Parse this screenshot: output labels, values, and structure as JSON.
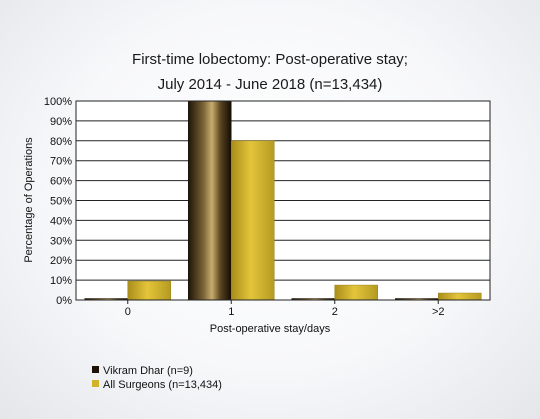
{
  "chart_data": {
    "type": "bar",
    "title": "First-time lobectomy: Post-operative stay;",
    "subtitle": "July 2014 - June 2018 (n=13,434)",
    "xlabel": "Post-operative stay/days",
    "ylabel": "Percentage of Operations",
    "categories": [
      "0",
      "1",
      "2",
      ">2"
    ],
    "ylim": [
      0,
      100
    ],
    "yticks": [
      "0%",
      "10%",
      "20%",
      "30%",
      "40%",
      "50%",
      "60%",
      "70%",
      "80%",
      "90%",
      "100%"
    ],
    "grid": true,
    "legend_position": "bottom-left",
    "series": [
      {
        "name": "Vikram Dhar (n=9)",
        "values": [
          0,
          100,
          0,
          0
        ],
        "color": "#3a2a14"
      },
      {
        "name": "All Surgeons (n=13,434)",
        "values": [
          9.5,
          80,
          7.5,
          3.5
        ],
        "color": "#d2b227"
      }
    ]
  }
}
